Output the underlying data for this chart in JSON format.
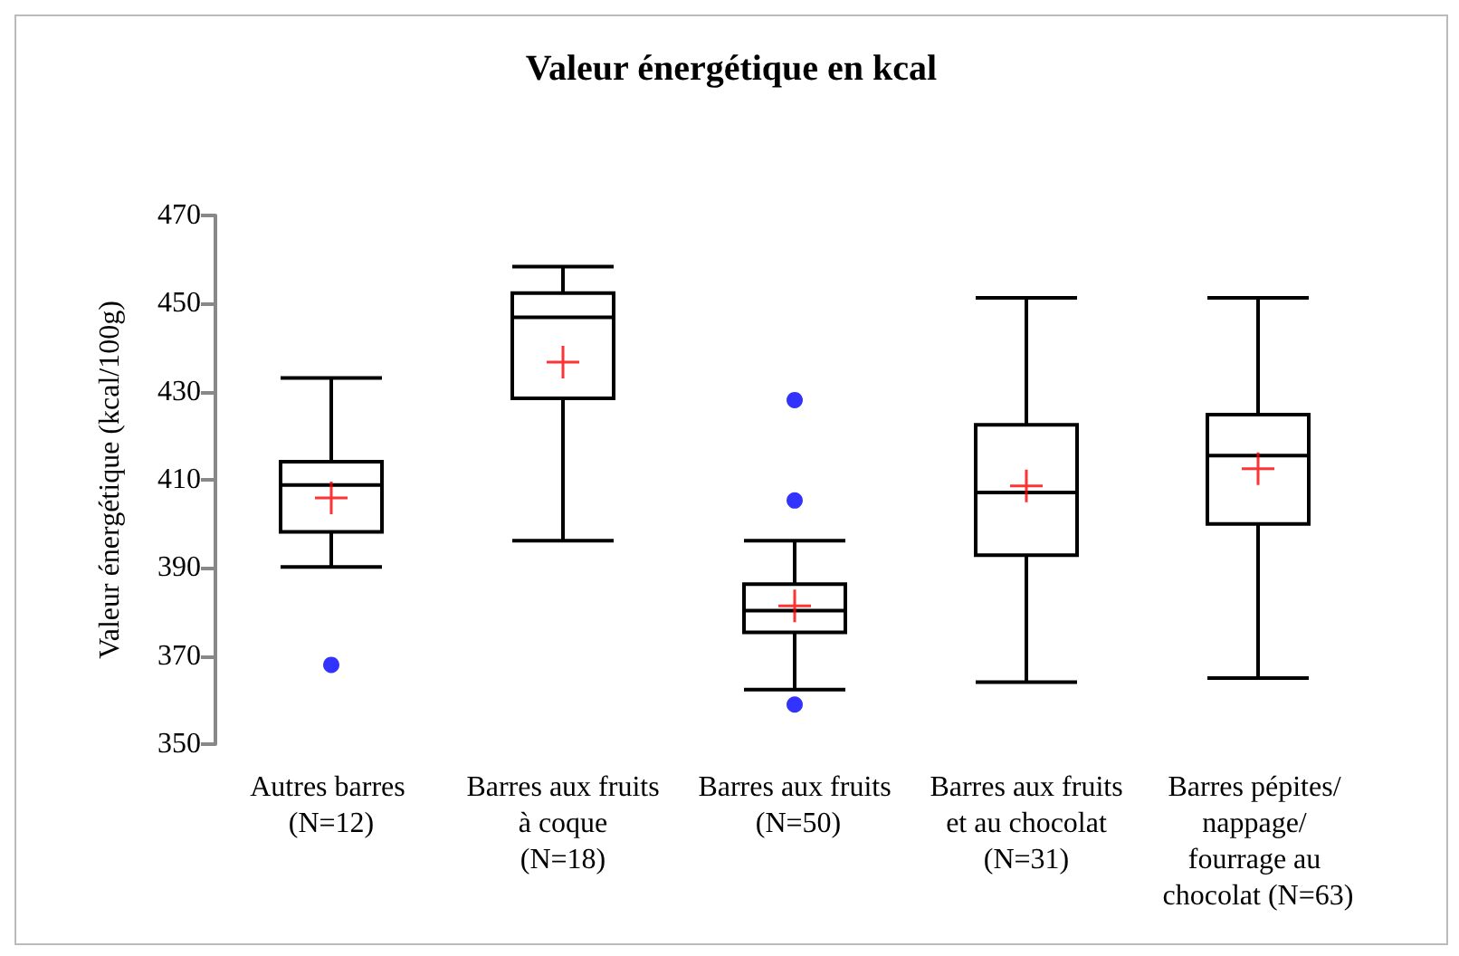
{
  "chart_data": {
    "type": "box",
    "title": "Valeur énergétique en kcal",
    "ylabel": "Valeur énergétique (kcal/100g)",
    "categories": [
      "Autres barres (N=12)",
      "Barres aux fruits à coque (N=18)",
      "Barres aux fruits (N=50)",
      "Barres aux fruits et au chocolat (N=31)",
      "Barres pépites/ nappage/ fourrage au chocolat (N=63)"
    ],
    "boxes": [
      {
        "low": 390.2,
        "q1": 398.2,
        "median": 408.8,
        "q3": 414.1,
        "high": 433.1,
        "mean": 405.9,
        "outliers": [
          368
        ]
      },
      {
        "low": 396.2,
        "q1": 428.5,
        "median": 446.9,
        "q3": 452.4,
        "high": 458.4,
        "mean": 436.7
      },
      {
        "low": 362.4,
        "q1": 375.4,
        "median": 380.3,
        "q3": 386.3,
        "high": 396.2,
        "mean": 381.4,
        "outliers": [
          428.1,
          405.3,
          359
        ]
      },
      {
        "low": 364.1,
        "q1": 392.9,
        "median": 407.1,
        "q3": 422.5,
        "high": 451.3,
        "mean": 408.6
      },
      {
        "low": 365,
        "q1": 400,
        "median": 415.5,
        "q3": 424.8,
        "high": 451.3,
        "mean": 412.5
      }
    ],
    "ylim": [
      350,
      470
    ],
    "yticks": [
      350,
      370,
      390,
      410,
      430,
      450,
      470
    ],
    "grid": false
  }
}
